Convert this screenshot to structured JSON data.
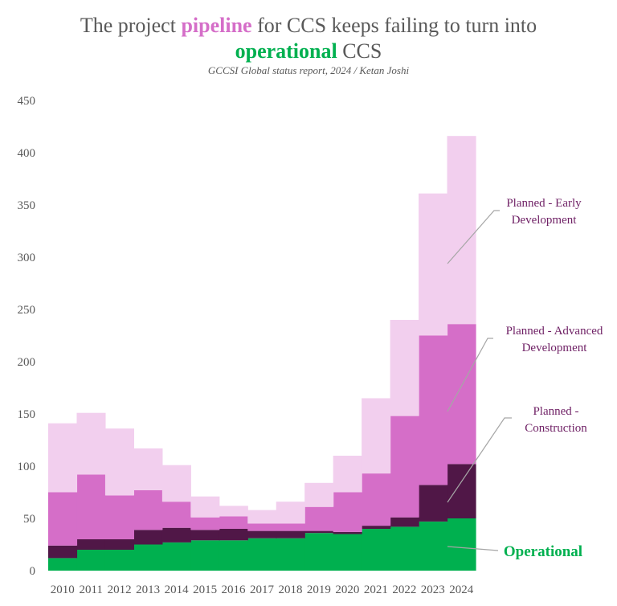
{
  "title": {
    "part1": "The project ",
    "highlight1": "pipeline",
    "part2": " for CCS keeps failing to turn into",
    "highlight2": "operational",
    "part3": " CCS"
  },
  "subtitle": "GCCSI Global status report, 2024 / Ketan Joshi",
  "chart_data": {
    "type": "bar",
    "stacked": true,
    "categories": [
      "2010",
      "2011",
      "2012",
      "2013",
      "2014",
      "2015",
      "2016",
      "2017",
      "2018",
      "2019",
      "2020",
      "2021",
      "2022",
      "2023",
      "2024"
    ],
    "ylim": [
      0,
      450
    ],
    "yticks": [
      0,
      50,
      100,
      150,
      200,
      250,
      300,
      350,
      400,
      450
    ],
    "grid": false,
    "legend": "direct labels on right",
    "series": [
      {
        "name": "Operational",
        "color": "#00b04f",
        "values": [
          12,
          20,
          20,
          25,
          27,
          29,
          29,
          31,
          31,
          36,
          35,
          40,
          42,
          47,
          50
        ]
      },
      {
        "name": "Planned - Construction",
        "color": "#501747",
        "values": [
          12,
          10,
          10,
          14,
          14,
          10,
          11,
          7,
          7,
          2,
          2,
          3,
          9,
          35,
          52
        ]
      },
      {
        "name": "Planned - Advanced Development",
        "color": "#d56ec8",
        "values": [
          51,
          62,
          42,
          38,
          25,
          12,
          12,
          7,
          7,
          23,
          38,
          50,
          97,
          143,
          134
        ]
      },
      {
        "name": "Planned - Early Development",
        "color": "#f2cfee",
        "values": [
          66,
          59,
          64,
          40,
          35,
          20,
          10,
          13,
          21,
          23,
          35,
          72,
          92,
          136,
          180
        ]
      }
    ],
    "labels": {
      "early": [
        "Planned - Early",
        "Development"
      ],
      "advanced": [
        "Planned - Advanced",
        "Development"
      ],
      "construction": [
        "Planned -",
        "Construction"
      ],
      "operational": "Operational"
    }
  }
}
